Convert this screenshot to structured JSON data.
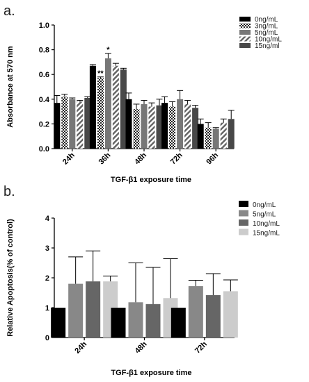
{
  "chart_data": [
    {
      "panel": "a.",
      "type": "bar",
      "xlabel": "TGF-β1 exposure time",
      "ylabel": "Absorbance at 570 nm",
      "ylim": [
        0,
        1.0
      ],
      "yticks": [
        "0.0",
        "0.2",
        "0.4",
        "0.6",
        "0.8",
        "1.0"
      ],
      "categories": [
        "24h",
        "36h",
        "48h",
        "72h",
        "96h"
      ],
      "legend_position": "top-right",
      "grid": false,
      "series": [
        {
          "name": "0ng/mL",
          "color": "#000000",
          "pattern": "solid",
          "values": [
            0.37,
            0.67,
            0.4,
            0.37,
            0.2
          ],
          "errors": [
            0.06,
            0.01,
            0.05,
            0.05,
            0.04
          ]
        },
        {
          "name": "3ng/mL",
          "color": "#222222",
          "pattern": "checker",
          "values": [
            0.42,
            0.57,
            0.32,
            0.34,
            0.17
          ],
          "errors": [
            0.02,
            0.01,
            0.04,
            0.04,
            0.04
          ]
        },
        {
          "name": "5ng/mL",
          "color": "#777777",
          "pattern": "solid",
          "values": [
            0.4,
            0.73,
            0.36,
            0.4,
            0.16
          ],
          "errors": [
            0.01,
            0.04,
            0.03,
            0.07,
            0.01
          ]
        },
        {
          "name": "10ng/mL",
          "color": "#666666",
          "pattern": "hatch",
          "values": [
            0.38,
            0.67,
            0.34,
            0.36,
            0.21
          ],
          "errors": [
            0.01,
            0.02,
            0.03,
            0.03,
            0.03
          ]
        },
        {
          "name": "15ng/ml",
          "color": "#484848",
          "pattern": "solid",
          "values": [
            0.41,
            0.64,
            0.35,
            0.33,
            0.24
          ],
          "errors": [
            0.01,
            0.01,
            0.05,
            0.02,
            0.07
          ]
        }
      ],
      "annotations": [
        {
          "text": "**",
          "category": "36h",
          "series": "3ng/mL"
        },
        {
          "text": "*",
          "category": "36h",
          "series": "5ng/mL"
        }
      ]
    },
    {
      "panel": "b.",
      "type": "bar",
      "xlabel": "TGF-β1 exposure time",
      "ylabel": "Relative Apoptosis(% of control)",
      "ylim": [
        0,
        4
      ],
      "yticks": [
        "0",
        "1",
        "2",
        "3",
        "4"
      ],
      "categories": [
        "24h",
        "48h",
        "72h"
      ],
      "legend_position": "top-right",
      "grid": false,
      "series": [
        {
          "name": "0ng/mL",
          "color": "#000000",
          "pattern": "solid",
          "values": [
            1.0,
            1.0,
            1.0
          ],
          "errors": [
            0,
            0,
            0
          ]
        },
        {
          "name": "5ng/mL",
          "color": "#888888",
          "pattern": "solid",
          "values": [
            1.8,
            1.18,
            1.72
          ],
          "errors": [
            0.9,
            1.32,
            0.2
          ]
        },
        {
          "name": "10ng/mL",
          "color": "#666666",
          "pattern": "solid",
          "values": [
            1.88,
            1.12,
            1.42
          ],
          "errors": [
            1.02,
            1.23,
            0.72
          ]
        },
        {
          "name": "15ng/mL",
          "color": "#cccccc",
          "pattern": "solid",
          "values": [
            1.88,
            1.32,
            1.55
          ],
          "errors": [
            0.18,
            1.32,
            0.38
          ]
        }
      ]
    }
  ]
}
